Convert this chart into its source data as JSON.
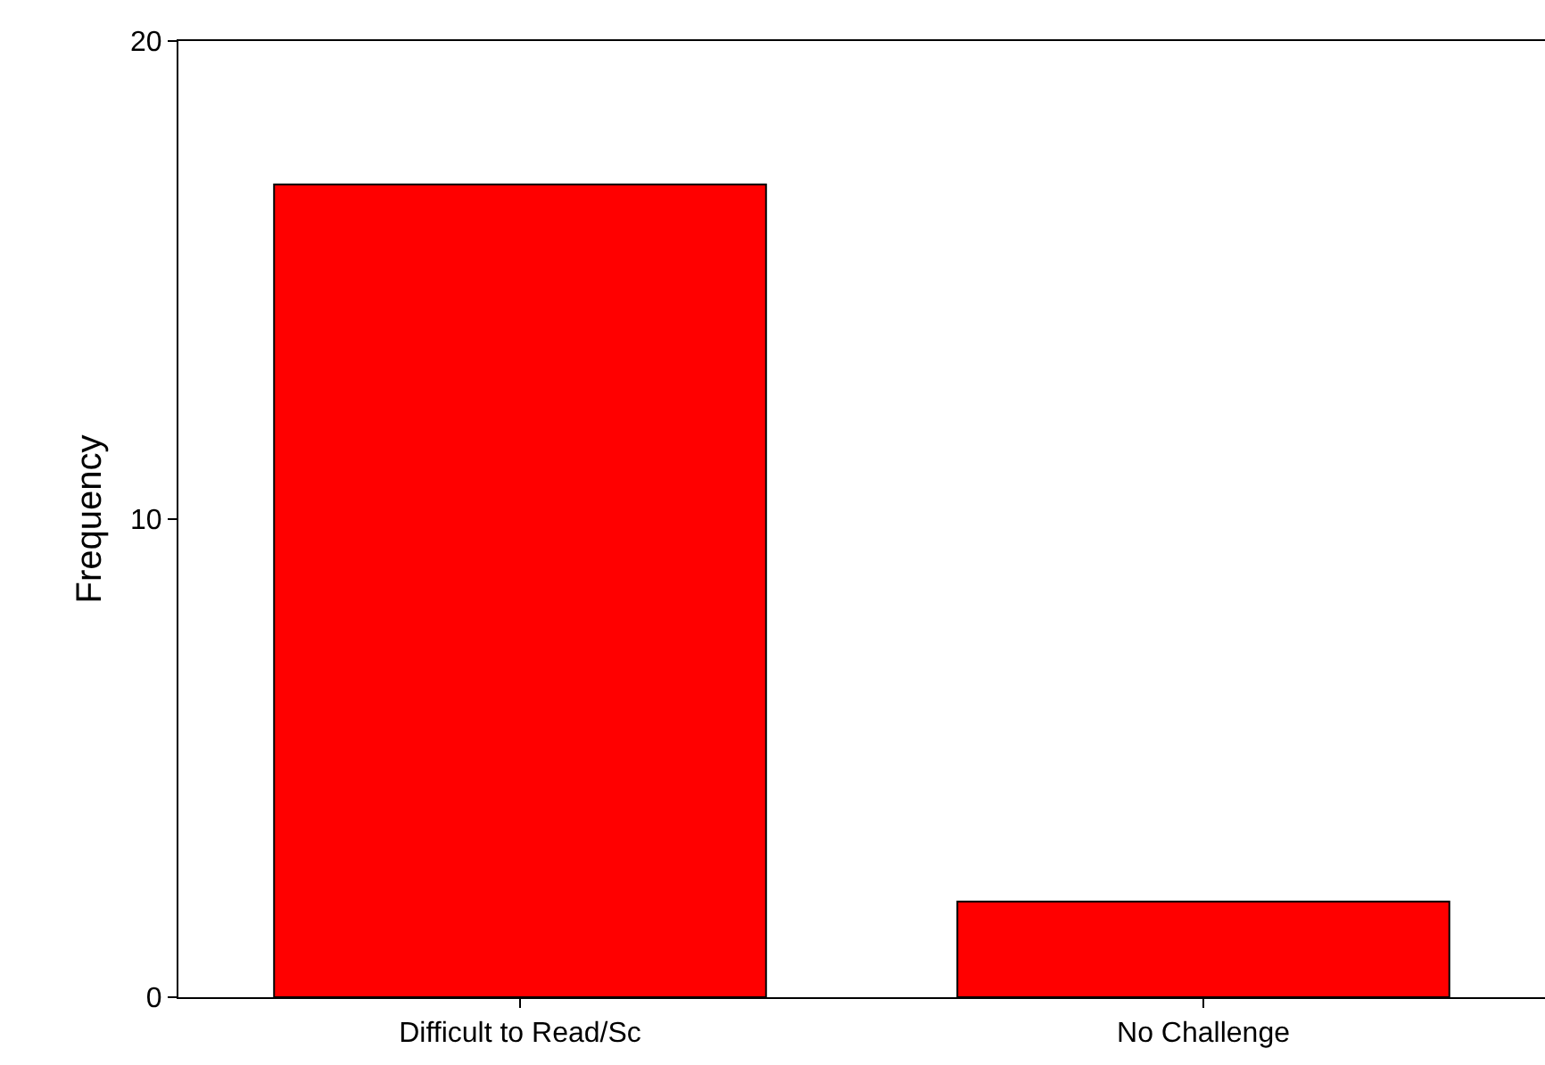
{
  "chart_data": {
    "type": "bar",
    "ylabel": "Frequency",
    "categories": [
      "Difficult to Read/Sc",
      "No Challenge"
    ],
    "values": [
      17,
      2
    ],
    "color": "#ff0000",
    "ylim": [
      0,
      20
    ],
    "yticks": [
      0,
      10,
      20
    ],
    "grid": false,
    "legend": false
  }
}
